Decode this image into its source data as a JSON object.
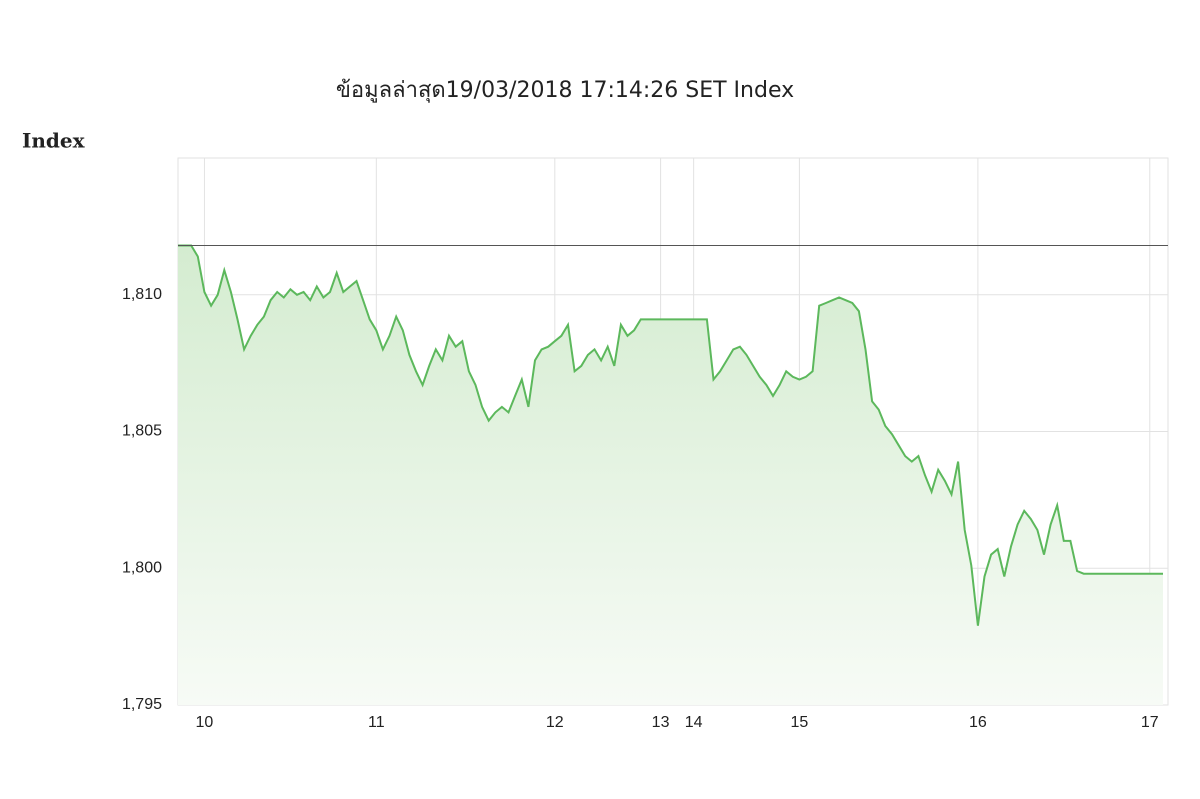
{
  "chart_data": {
    "type": "line",
    "title": "ข้อมูลล่าสุด19/03/2018 17:14:26  SET Index",
    "y_label": "Index",
    "categories": [
      null,
      null,
      null,
      null,
      "10",
      null,
      null,
      null,
      null,
      null,
      null,
      null,
      null,
      null,
      null,
      null,
      null,
      null,
      null,
      null,
      null,
      null,
      null,
      null,
      null,
      null,
      null,
      null,
      null,
      null,
      "11",
      null,
      null,
      null,
      null,
      null,
      null,
      null,
      null,
      null,
      null,
      null,
      null,
      null,
      null,
      null,
      null,
      null,
      null,
      null,
      null,
      null,
      null,
      null,
      null,
      null,
      null,
      "12",
      null,
      null,
      null,
      null,
      null,
      null,
      null,
      null,
      null,
      null,
      null,
      null,
      null,
      null,
      null,
      "13",
      null,
      null,
      null,
      null,
      "14",
      null,
      null,
      null,
      null,
      null,
      null,
      null,
      null,
      null,
      null,
      null,
      null,
      null,
      null,
      null,
      "15",
      null,
      null,
      null,
      null,
      null,
      null,
      null,
      null,
      null,
      null,
      null,
      null,
      null,
      null,
      null,
      null,
      null,
      null,
      null,
      null,
      null,
      null,
      null,
      null,
      null,
      null,
      "16",
      null,
      null,
      null,
      null,
      null,
      null,
      null,
      null,
      null,
      null,
      null,
      null,
      null,
      null,
      null,
      null,
      null,
      null,
      null,
      null,
      null,
      null,
      null,
      null,
      null,
      "17",
      null,
      null
    ],
    "series": [
      {
        "name": "SET Index",
        "color": "#5cb85c",
        "values": [
          1811.8,
          1811.8,
          1811.8,
          1811.4,
          1810.1,
          1809.6,
          1810.0,
          1810.9,
          1810.1,
          1809.1,
          1808.0,
          1808.5,
          1808.9,
          1809.2,
          1809.8,
          1810.1,
          1809.9,
          1810.2,
          1810.0,
          1810.1,
          1809.8,
          1810.3,
          1809.9,
          1810.1,
          1810.8,
          1810.1,
          1810.3,
          1810.5,
          1809.8,
          1809.1,
          1808.7,
          1808.0,
          1808.5,
          1809.2,
          1808.7,
          1807.8,
          1807.2,
          1806.7,
          1807.4,
          1808.0,
          1807.6,
          1808.5,
          1808.1,
          1808.3,
          1807.2,
          1806.7,
          1805.9,
          1805.4,
          1805.7,
          1805.9,
          1805.7,
          1806.3,
          1806.9,
          1805.9,
          1807.6,
          1808.0,
          1808.1,
          1808.3,
          1808.5,
          1808.9,
          1807.2,
          1807.4,
          1807.8,
          1808.0,
          1807.6,
          1808.1,
          1807.4,
          1808.9,
          1808.5,
          1808.7,
          1809.1,
          1809.1,
          1809.1,
          1809.1,
          1809.1,
          1809.1,
          1809.1,
          1809.1,
          1809.1,
          1809.1,
          1809.1,
          1806.9,
          1807.2,
          1807.6,
          1808.0,
          1808.1,
          1807.8,
          1807.4,
          1807.0,
          1806.7,
          1806.3,
          1806.7,
          1807.2,
          1807.0,
          1806.9,
          1807.0,
          1807.2,
          1809.6,
          1809.7,
          1809.8,
          1809.9,
          1809.8,
          1809.7,
          1809.4,
          1808.0,
          1806.1,
          1805.8,
          1805.2,
          1804.9,
          1804.5,
          1804.1,
          1803.9,
          1804.1,
          1803.4,
          1802.8,
          1803.6,
          1803.2,
          1802.7,
          1803.9,
          1801.4,
          1800.1,
          1797.9,
          1799.7,
          1800.5,
          1800.7,
          1799.7,
          1800.8,
          1801.6,
          1802.1,
          1801.8,
          1801.4,
          1800.5,
          1801.6,
          1802.3,
          1801.0,
          1801.0,
          1799.9,
          1799.8,
          1799.8,
          1799.8,
          1799.8,
          1799.8,
          1799.8,
          1799.8,
          1799.8,
          1799.8,
          1799.8,
          1799.8,
          1799.8,
          1799.8
        ]
      }
    ],
    "reference_line": 1811.8,
    "ylim": [
      1795,
      1815
    ],
    "yticks": [
      {
        "value": 1795,
        "label": "1,795"
      },
      {
        "value": 1800,
        "label": "1,800"
      },
      {
        "value": 1805,
        "label": "1,805"
      },
      {
        "value": 1810,
        "label": "1,810"
      }
    ],
    "grid": true
  }
}
